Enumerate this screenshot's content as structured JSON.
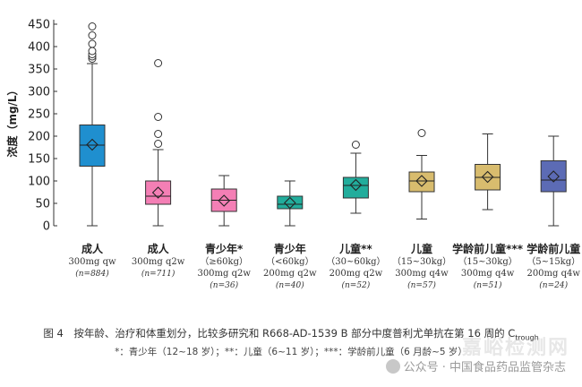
{
  "chart_data": {
    "type": "box",
    "ylabel": "浓度（mg/L）",
    "ylim": [
      0,
      460
    ],
    "yticks": [
      0,
      50,
      100,
      150,
      200,
      250,
      300,
      350,
      400,
      450
    ],
    "groups": [
      {
        "line1": "成人",
        "line2": "300mg qw",
        "n_label": "(n=884)",
        "color": "#1f8fcf",
        "min": 0,
        "q1": 133,
        "median": 180,
        "q3": 225,
        "max": 362,
        "mean": 181,
        "outliers": [
          373,
          378,
          383,
          390,
          406,
          425,
          445
        ]
      },
      {
        "line1": "成人",
        "line2": "300mg q2w",
        "n_label": "(n=711)",
        "color": "#f47fb5",
        "min": 0,
        "q1": 48,
        "median": 66,
        "q3": 100,
        "max": 170,
        "mean": 74,
        "outliers": [
          183,
          205,
          243,
          363
        ]
      },
      {
        "line1": "青少年*",
        "line2": "（≥60kg）",
        "line3": "300mg q2w",
        "n_label": "(n=36)",
        "color": "#f47fb5",
        "min": 0,
        "q1": 32,
        "median": 57,
        "q3": 82,
        "max": 112,
        "mean": 56,
        "outliers": []
      },
      {
        "line1": "青少年",
        "line2": "（<60kg）",
        "line3": "200mg q2w",
        "n_label": "(n=40)",
        "color": "#22ad9c",
        "min": 0,
        "q1": 38,
        "median": 48,
        "q3": 66,
        "max": 100,
        "mean": 51,
        "outliers": []
      },
      {
        "line1": "儿童**",
        "line2": "（30~60kg）",
        "line3": "200mg q2w",
        "n_label": "(n=52)",
        "color": "#22ad9c",
        "min": 28,
        "q1": 62,
        "median": 90,
        "q3": 108,
        "max": 162,
        "mean": 91,
        "outliers": [
          181
        ]
      },
      {
        "line1": "儿童",
        "line2": "（15~30kg）",
        "line3": "300mg q4w",
        "n_label": "(n=57)",
        "color": "#d8bc6e",
        "min": 15,
        "q1": 76,
        "median": 100,
        "q3": 120,
        "max": 157,
        "mean": 100,
        "outliers": [
          207
        ]
      },
      {
        "line1": "学龄前儿童***",
        "line2": "（15~30kg）",
        "line3": "300mg q4w",
        "n_label": "(n=51)",
        "color": "#d8bc6e",
        "min": 36,
        "q1": 80,
        "median": 108,
        "q3": 137,
        "max": 205,
        "mean": 109,
        "outliers": []
      },
      {
        "line1": "学龄前儿童",
        "line2": "（5~15kg）",
        "line3": "200mg q4w",
        "n_label": "(n=24)",
        "color": "#5c6bb5",
        "min": 0,
        "q1": 76,
        "median": 102,
        "q3": 145,
        "max": 200,
        "mean": 110,
        "outliers": []
      }
    ]
  },
  "caption": {
    "main": "图 4　按年龄、治疗和体重划分，比较多研究和 R668-AD-1539 B 部分中度普利尤单抗在第 16 周的 C",
    "main_sub": "trough",
    "note": "*：青少年（12~18 岁）；**：儿童（6~11 岁）；***：学龄前儿童（6 月龄~5 岁）"
  },
  "watermark": {
    "text": "公众号 · 中国食品药品监管杂志",
    "site": "嘉峪检测网"
  }
}
